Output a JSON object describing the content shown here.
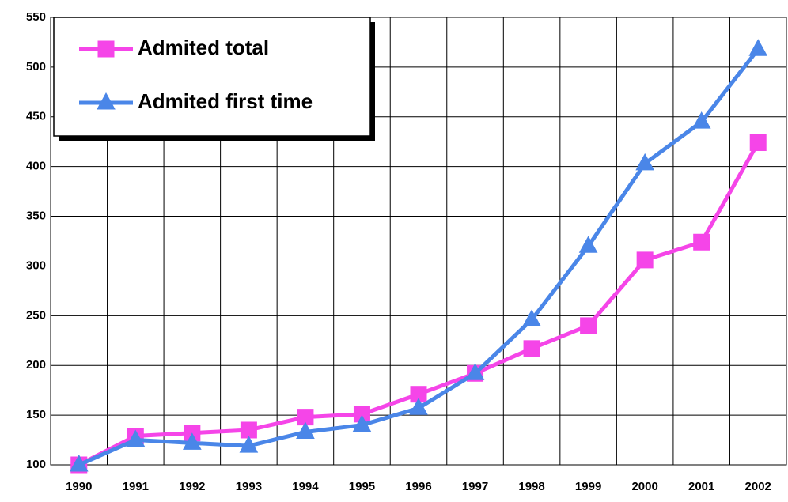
{
  "chart_data": {
    "type": "line",
    "categories": [
      "1990",
      "1991",
      "1992",
      "1993",
      "1994",
      "1995",
      "1996",
      "1997",
      "1998",
      "1999",
      "2000",
      "2001",
      "2002"
    ],
    "series": [
      {
        "name": "Admited total",
        "color": "#f545e8",
        "marker": "square",
        "values": [
          100,
          129,
          132,
          135,
          148,
          151,
          171,
          192,
          217,
          240,
          306,
          324,
          424
        ]
      },
      {
        "name": "Admited first time",
        "color": "#4a86e8",
        "marker": "triangle",
        "values": [
          100,
          125,
          122,
          119,
          133,
          140,
          157,
          192,
          246,
          320,
          403,
          445,
          518
        ]
      }
    ],
    "ylim": [
      100,
      550
    ],
    "yticks": [
      100,
      150,
      200,
      250,
      300,
      350,
      400,
      450,
      500,
      550
    ],
    "grid": true
  }
}
